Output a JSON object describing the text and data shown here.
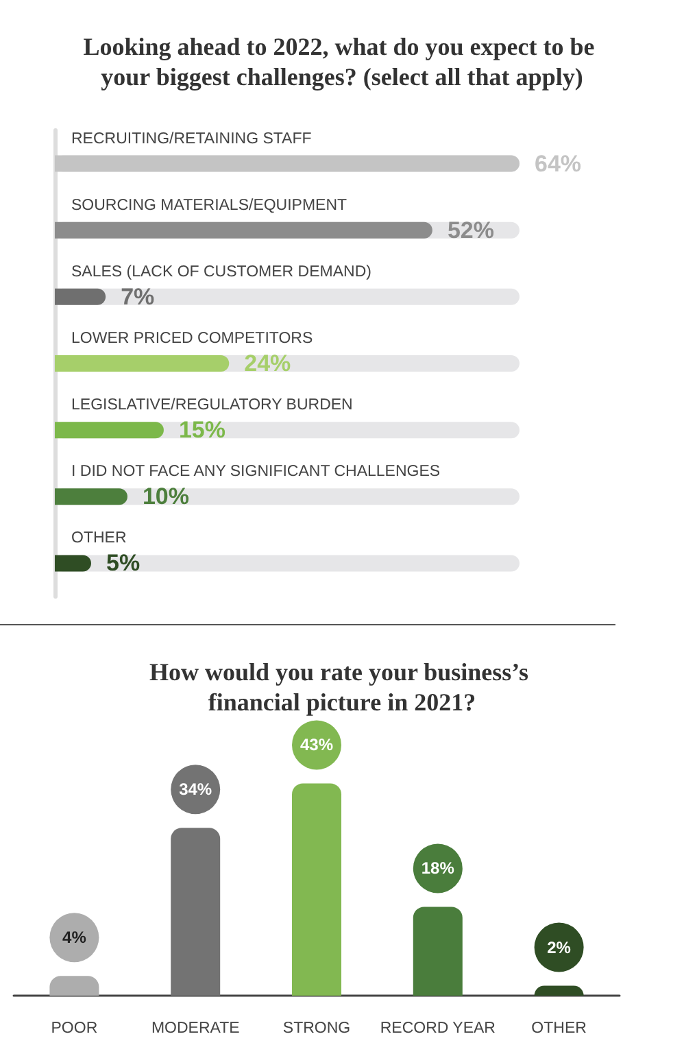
{
  "chart_data": [
    {
      "type": "bar",
      "orientation": "horizontal",
      "title": "Looking ahead to 2022, what do you expect to be your biggest challenges? (select all that apply)",
      "categories": [
        "RECRUITING/RETAINING STAFF",
        "SOURCING MATERIALS/EQUIPMENT",
        "SALES (LACK OF CUSTOMER DEMAND)",
        "LOWER PRICED COMPETITORS",
        "LEGISLATIVE/REGULATORY BURDEN",
        "I DID NOT FACE ANY SIGNIFICANT CHALLENGES",
        "OTHER"
      ],
      "values": [
        64,
        52,
        7,
        24,
        15,
        10,
        5
      ],
      "colors": [
        "#c4c4c4",
        "#8c8c8c",
        "#6f6f6f",
        "#a6cf6a",
        "#7cb84a",
        "#4d7f3d",
        "#2f4d24"
      ],
      "value_labels": [
        "64%",
        "52%",
        "7%",
        "24%",
        "15%",
        "10%",
        "5%"
      ],
      "tick_labels": false,
      "grid": false
    },
    {
      "type": "bar",
      "title": "How would you rate your business’s financial picture in 2021?",
      "categories": [
        "POOR",
        "MODERATE",
        "STRONG",
        "RECORD YEAR",
        "OTHER"
      ],
      "values": [
        4,
        34,
        43,
        18,
        2
      ],
      "colors": [
        "#adadad",
        "#737373",
        "#82b851",
        "#4a7d3c",
        "#2f4d24"
      ],
      "value_labels": [
        "4%",
        "34%",
        "43%",
        "18%",
        "2%"
      ],
      "tick_labels": "x",
      "grid": false
    }
  ]
}
